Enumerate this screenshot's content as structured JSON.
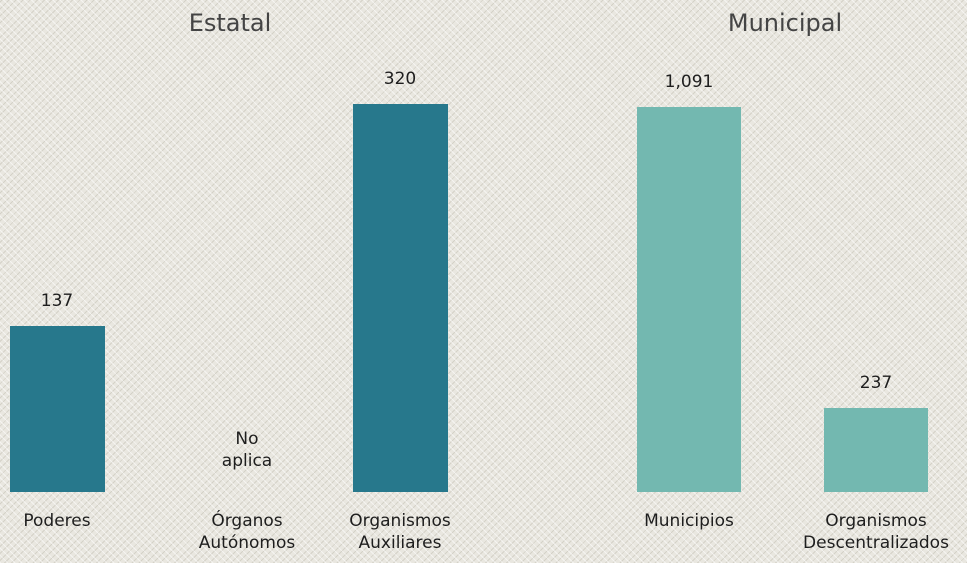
{
  "chart_data": [
    {
      "type": "bar",
      "title": "Estatal",
      "categories": [
        "Poderes",
        "Órganos\nAutónomos",
        "Organismos\nAuxiliares"
      ],
      "values": [
        137,
        null,
        320
      ],
      "annotation": "No\naplica",
      "color": "#27788c",
      "ylim": [
        0,
        320
      ]
    },
    {
      "type": "bar",
      "title": "Municipal",
      "categories": [
        "Municipios",
        "Organismos\nDescentralizados"
      ],
      "values": [
        1091,
        237
      ],
      "value_labels": [
        "1,091",
        "237"
      ],
      "color": "#73b8b0",
      "ylim": [
        0,
        1100
      ]
    }
  ]
}
